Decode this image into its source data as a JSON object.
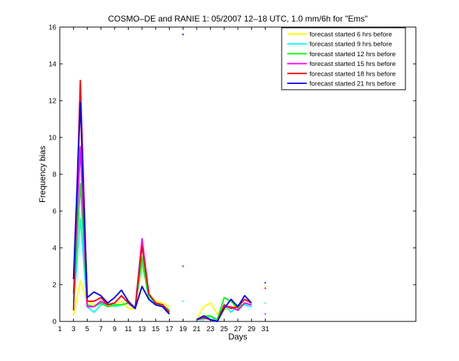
{
  "chart_data": {
    "type": "line",
    "title": "COSMO–DE and RANIE 1: 05/2007 12–18 UTC, 1.0 mm/6h for \"Ems\"",
    "xlabel": "Days",
    "ylabel": "Frequency bias",
    "xlim": [
      1,
      53
    ],
    "ylim": [
      0,
      16
    ],
    "xticks": [
      1,
      3,
      5,
      7,
      9,
      11,
      13,
      15,
      17,
      19,
      21,
      23,
      25,
      27,
      29,
      31
    ],
    "yticks": [
      0,
      2,
      4,
      6,
      8,
      10,
      12,
      14,
      16
    ],
    "grid": false,
    "legend_position": "top-right",
    "series": [
      {
        "name": "forecast started 6 hrs before",
        "color": "#ffff00",
        "segments": [
          [
            [
              3,
              0.3
            ],
            [
              4,
              2.2
            ],
            [
              5,
              1.1
            ],
            [
              6,
              0.9
            ],
            [
              7,
              1.0
            ],
            [
              8,
              0.8
            ],
            [
              9,
              0.9
            ],
            [
              10,
              1.1
            ],
            [
              11,
              0.7
            ],
            [
              12,
              0.7
            ],
            [
              13,
              3.0
            ],
            [
              14,
              1.5
            ],
            [
              15,
              1.1
            ],
            [
              16,
              1.0
            ],
            [
              17,
              0.8
            ]
          ],
          [
            [
              21,
              0.1
            ],
            [
              22,
              0.8
            ],
            [
              23,
              1.0
            ],
            [
              24,
              0.4
            ],
            [
              25,
              0.6
            ],
            [
              26,
              0.8
            ],
            [
              27,
              0.8
            ],
            [
              28,
              1.0
            ],
            [
              29,
              0.9
            ]
          ]
        ],
        "dots": [
          [
            31,
            1.9
          ]
        ]
      },
      {
        "name": "forecast started 9 hrs before",
        "color": "#00ffff",
        "segments": [
          [
            [
              3,
              0.8
            ],
            [
              4,
              5.6
            ],
            [
              5,
              0.8
            ],
            [
              6,
              0.5
            ],
            [
              7,
              0.9
            ],
            [
              8,
              1.0
            ],
            [
              9,
              0.8
            ],
            [
              10,
              0.9
            ],
            [
              11,
              1.0
            ],
            [
              12,
              0.8
            ],
            [
              13,
              3.2
            ],
            [
              14,
              1.4
            ],
            [
              15,
              0.9
            ],
            [
              16,
              0.9
            ],
            [
              17,
              0.6
            ]
          ],
          [
            [
              21,
              0.1
            ],
            [
              22,
              0.1
            ],
            [
              23,
              0.3
            ],
            [
              24,
              0.0
            ],
            [
              25,
              0.9
            ],
            [
              26,
              0.5
            ],
            [
              27,
              0.9
            ],
            [
              28,
              0.9
            ],
            [
              29,
              0.8
            ]
          ]
        ],
        "dots": [
          [
            19,
            1.1
          ],
          [
            31,
            1.0
          ]
        ]
      },
      {
        "name": "forecast started 12 hrs before",
        "color": "#00ff00",
        "segments": [
          [
            [
              3,
              1.0
            ],
            [
              4,
              7.5
            ],
            [
              5,
              0.9
            ],
            [
              6,
              0.8
            ],
            [
              7,
              1.0
            ],
            [
              8,
              0.8
            ],
            [
              9,
              0.9
            ],
            [
              10,
              0.9
            ],
            [
              11,
              1.0
            ],
            [
              12,
              0.7
            ],
            [
              13,
              3.5
            ],
            [
              14,
              1.2
            ],
            [
              15,
              0.9
            ],
            [
              16,
              0.9
            ],
            [
              17,
              0.6
            ]
          ],
          [
            [
              21,
              0.1
            ],
            [
              22,
              0.3
            ],
            [
              23,
              0.3
            ],
            [
              24,
              0.1
            ],
            [
              25,
              1.3
            ],
            [
              26,
              1.1
            ],
            [
              27,
              0.7
            ],
            [
              28,
              1.0
            ],
            [
              29,
              0.9
            ]
          ]
        ],
        "dots": []
      },
      {
        "name": "forecast started 15 hrs before",
        "color": "#ff00ff",
        "segments": [
          [
            [
              3,
              1.5
            ],
            [
              4,
              9.5
            ],
            [
              5,
              0.8
            ],
            [
              6,
              0.8
            ],
            [
              7,
              1.1
            ],
            [
              8,
              0.9
            ],
            [
              9,
              1.0
            ],
            [
              10,
              1.4
            ],
            [
              11,
              1.0
            ],
            [
              12,
              0.7
            ],
            [
              13,
              4.5
            ],
            [
              14,
              1.5
            ],
            [
              15,
              1.0
            ],
            [
              16,
              0.9
            ],
            [
              17,
              0.5
            ]
          ],
          [
            [
              21,
              0.1
            ],
            [
              22,
              0.2
            ],
            [
              23,
              0.1
            ],
            [
              24,
              0.0
            ],
            [
              25,
              0.8
            ],
            [
              26,
              0.8
            ],
            [
              27,
              0.6
            ],
            [
              28,
              1.0
            ],
            [
              29,
              0.9
            ]
          ]
        ],
        "dots": [
          [
            31,
            0.4
          ]
        ]
      },
      {
        "name": "forecast started 18 hrs before",
        "color": "#ff0000",
        "segments": [
          [
            [
              3,
              0.6
            ],
            [
              4,
              13.1
            ],
            [
              5,
              1.1
            ],
            [
              6,
              1.1
            ],
            [
              7,
              1.3
            ],
            [
              8,
              0.9
            ],
            [
              9,
              1.0
            ],
            [
              10,
              1.4
            ],
            [
              11,
              1.0
            ],
            [
              12,
              0.7
            ],
            [
              13,
              4.1
            ],
            [
              14,
              1.5
            ],
            [
              15,
              1.0
            ],
            [
              16,
              0.9
            ],
            [
              17,
              0.5
            ]
          ],
          [
            [
              21,
              0.1
            ],
            [
              22,
              0.2
            ],
            [
              23,
              0.1
            ],
            [
              24,
              0.0
            ],
            [
              25,
              0.9
            ],
            [
              26,
              0.7
            ],
            [
              27,
              0.8
            ],
            [
              28,
              1.2
            ],
            [
              29,
              1.0
            ]
          ]
        ],
        "dots": [
          [
            19,
            3.0
          ],
          [
            31,
            1.8
          ]
        ]
      },
      {
        "name": "forecast started 21 hrs before",
        "color": "#0000ff",
        "segments": [
          [
            [
              3,
              2.3
            ],
            [
              4,
              11.9
            ],
            [
              5,
              1.3
            ],
            [
              6,
              1.6
            ],
            [
              7,
              1.4
            ],
            [
              8,
              1.0
            ],
            [
              9,
              1.3
            ],
            [
              10,
              1.7
            ],
            [
              11,
              1.1
            ],
            [
              12,
              0.7
            ],
            [
              13,
              1.9
            ],
            [
              14,
              1.2
            ],
            [
              15,
              0.9
            ],
            [
              16,
              0.8
            ],
            [
              17,
              0.4
            ]
          ],
          [
            [
              21,
              0.1
            ],
            [
              22,
              0.3
            ],
            [
              23,
              0.1
            ],
            [
              24,
              0.0
            ],
            [
              25,
              0.7
            ],
            [
              26,
              1.2
            ],
            [
              27,
              0.8
            ],
            [
              28,
              1.4
            ],
            [
              29,
              1.0
            ]
          ]
        ],
        "dots": [
          [
            19,
            15.6
          ],
          [
            31,
            2.1
          ]
        ]
      }
    ]
  }
}
